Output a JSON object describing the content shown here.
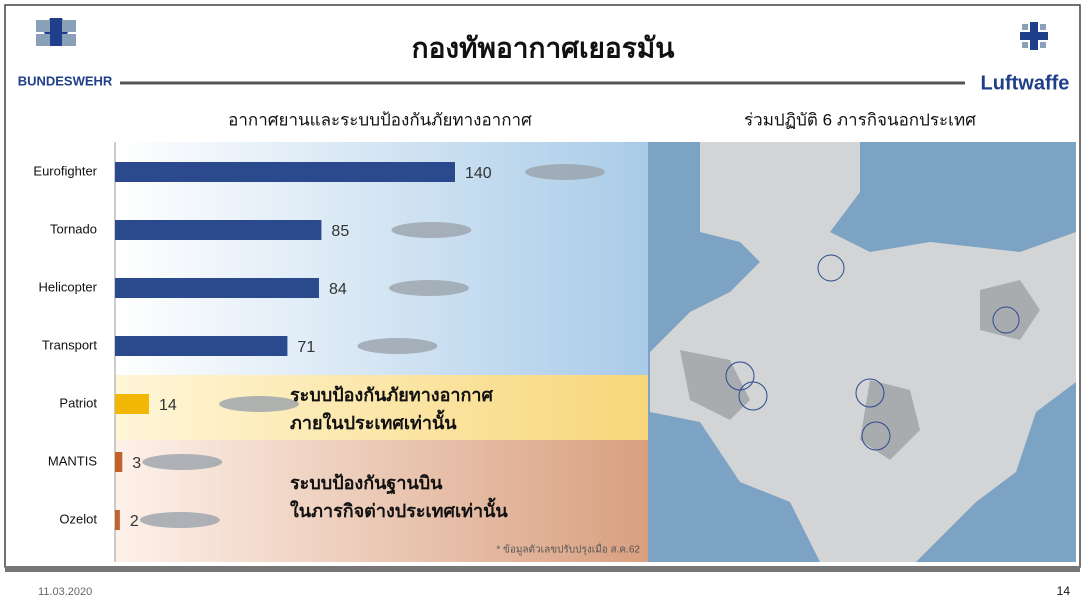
{
  "header": {
    "title": "กองทัพอากาศเยอรมัน",
    "left_logo": "BUNDESWEHR",
    "right_logo": "Luftwaffe"
  },
  "chart_data": {
    "type": "bar",
    "orientation": "horizontal",
    "title": "อากาศยานและระบบป้องกันภัยทางอากาศ",
    "categories": [
      "Eurofighter",
      "Tornado",
      "Helicopter",
      "Transport",
      "Patriot",
      "MANTIS",
      "Ozelot"
    ],
    "values": [
      140,
      85,
      84,
      71,
      14,
      3,
      2
    ],
    "colors": [
      "#2b4a8e",
      "#2b4a8e",
      "#2b4a8e",
      "#2b4a8e",
      "#f2b705",
      "#c0622a",
      "#c0622a"
    ],
    "annotations": [
      [
        "ระบบป้องกันภัยทางอากาศ",
        "ภายในประเทศเท่านั้น"
      ],
      [
        "ระบบป้องกันฐานบิน",
        "ในภารกิจต่างประเทศเท่านั้น"
      ]
    ],
    "footnote": "* ข้อมูลตัวเลขปรับปรุงเมื่อ ส.ค.62"
  },
  "map": {
    "title": "ร่วมปฏิบัติ 6 ภารกิจนอกประเทศ"
  },
  "footer": {
    "date": "11.03.2020",
    "page": "14"
  }
}
